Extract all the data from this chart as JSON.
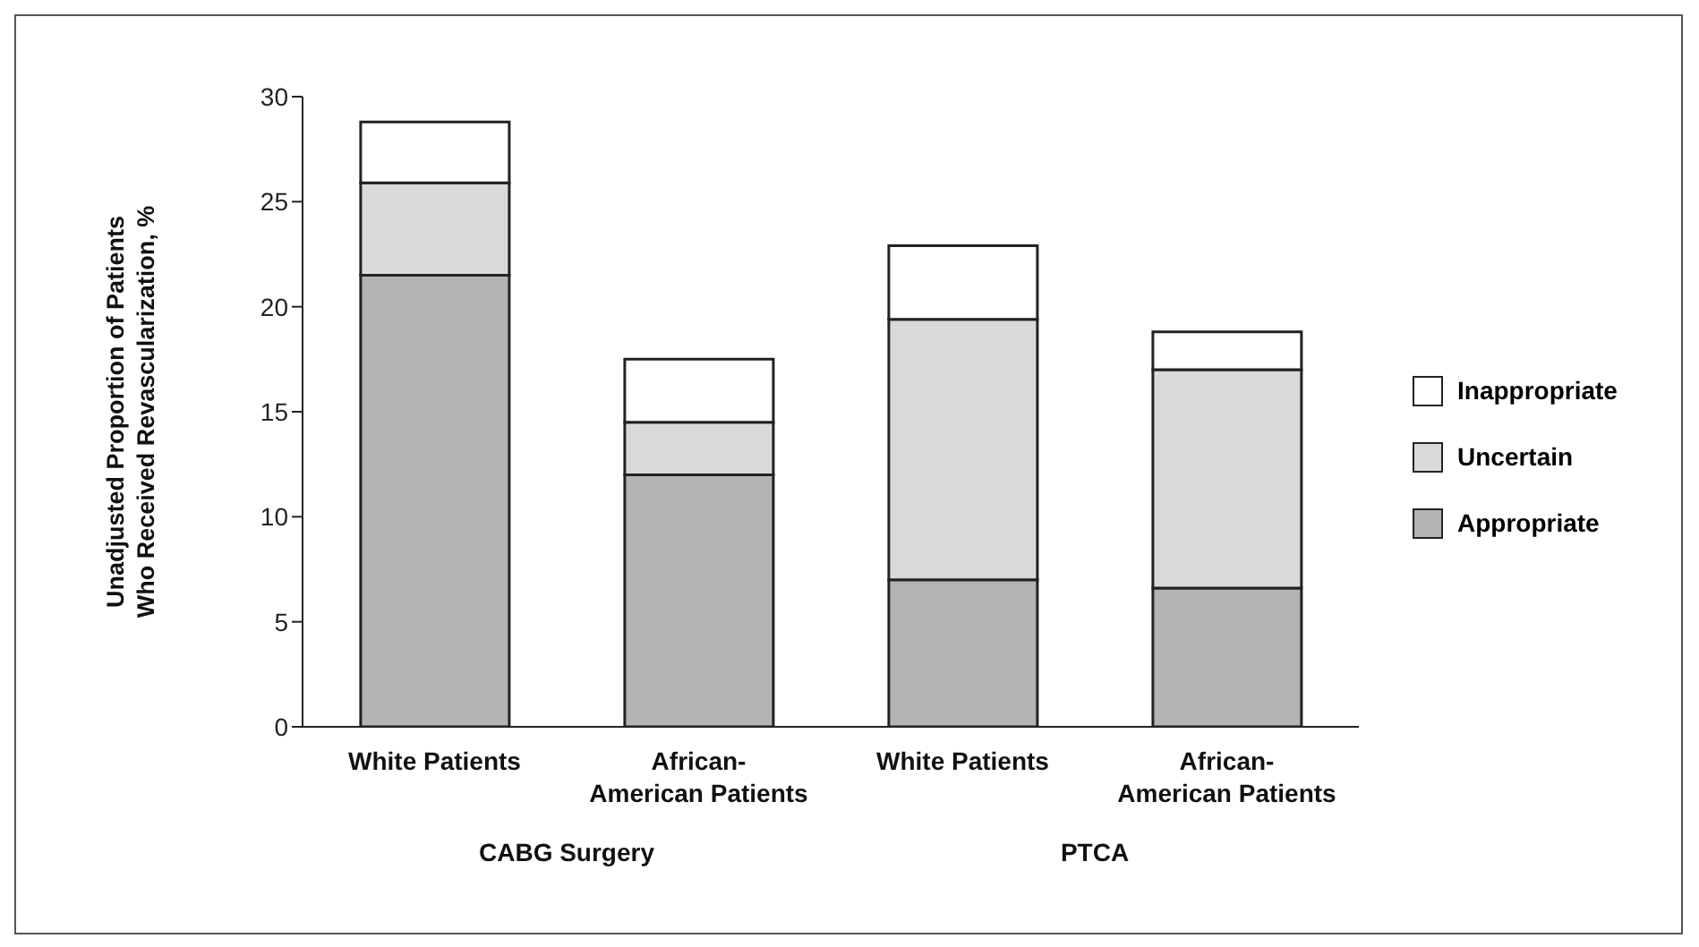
{
  "chart_data": {
    "type": "bar",
    "stacked": true,
    "ylabel": "Unadjusted Proportion of Patients Who Received Revascularization, %",
    "categories": [
      "White Patients",
      "African-American Patients",
      "White Patients",
      "African-American Patients"
    ],
    "series": [
      {
        "name": "Appropriate",
        "color": "#b3b3b3",
        "values": [
          21.5,
          12.0,
          7.0,
          6.6
        ]
      },
      {
        "name": "Uncertain",
        "color": "#d9d9d9",
        "values": [
          4.4,
          2.5,
          12.4,
          10.4
        ]
      },
      {
        "name": "Inappropriate",
        "color": "#ffffff",
        "values": [
          2.9,
          3.0,
          3.5,
          1.8
        ]
      }
    ],
    "ylim": [
      0,
      30
    ],
    "yticks": [
      0,
      5,
      10,
      15,
      20,
      25,
      30
    ],
    "legend": "right",
    "annotations": [
      "CABG Surgery",
      "PTCA"
    ]
  }
}
